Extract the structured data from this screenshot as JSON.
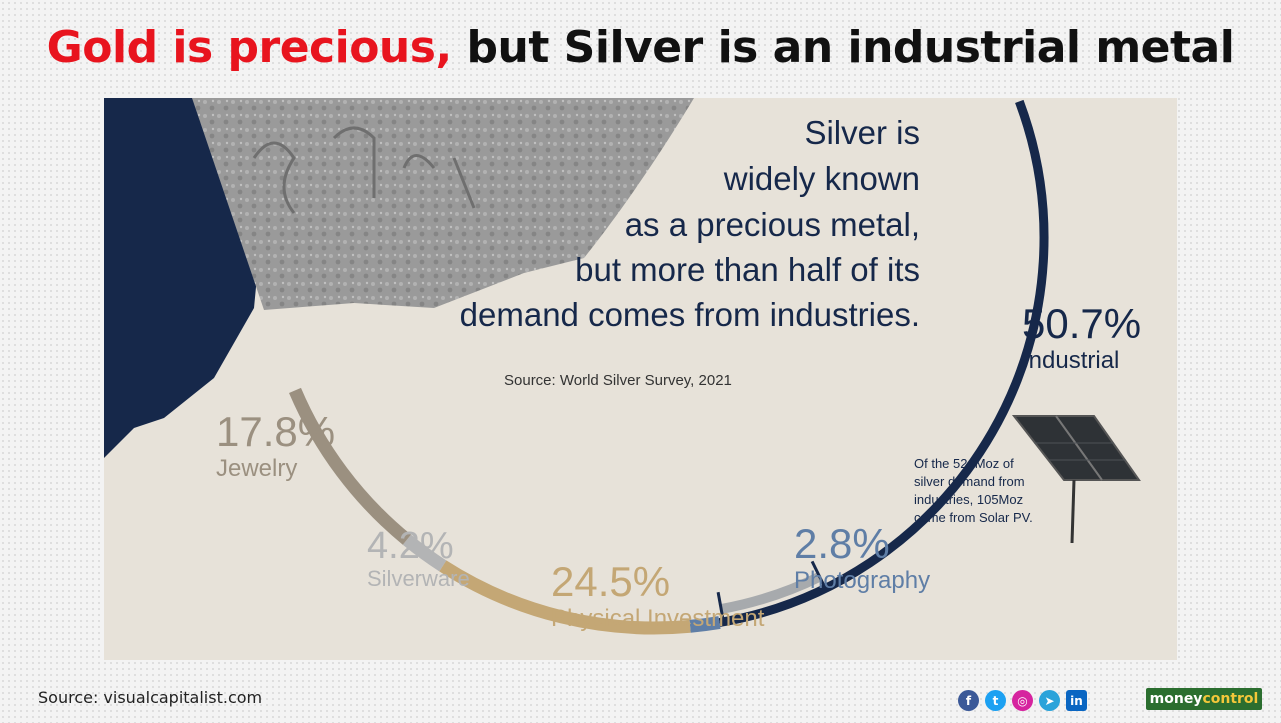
{
  "header": {
    "title_red": "Gold is precious,",
    "title_black": "but Silver is an industrial metal"
  },
  "panel": {
    "lead_lines": [
      "Silver is",
      "widely known",
      "as a precious metal,",
      "but more than half of its",
      "demand comes from industries."
    ],
    "source_note": "Source: World Silver Survey, 2021",
    "solar_note_lines": [
      "Of the 524Moz of",
      "silver demand from",
      "industries, 105Moz",
      "came from Solar PV."
    ]
  },
  "chart_data": {
    "type": "pie",
    "style": "arc-ring",
    "labels": [
      "Industrial",
      "Photography",
      "Physical Investment",
      "Silverware",
      "Jewelry"
    ],
    "values": [
      50.7,
      2.8,
      24.5,
      4.2,
      17.8
    ],
    "value_labels": [
      "50.7%",
      "2.8%",
      "24.5%",
      "4.2%",
      "17.8%"
    ],
    "colors": [
      "#16284a",
      "#5f7ea6",
      "#c4a775",
      "#b3b4b5",
      "#9b9080"
    ],
    "sub_segment": {
      "parent": "Industrial",
      "label": "Solar PV",
      "value_moz": 105,
      "parent_total_moz": 524,
      "color": "#a7aaad"
    }
  },
  "footer": {
    "source": "Source: visualcapitalist.com",
    "social_icons": [
      "facebook-icon",
      "twitter-icon",
      "instagram-icon",
      "telegram-icon",
      "linkedin-icon"
    ],
    "brand_a": "money",
    "brand_b": "control"
  },
  "colors": {
    "headline_red": "#e8141e",
    "navy": "#16284a",
    "panel_bg": "#e7e2d9"
  }
}
